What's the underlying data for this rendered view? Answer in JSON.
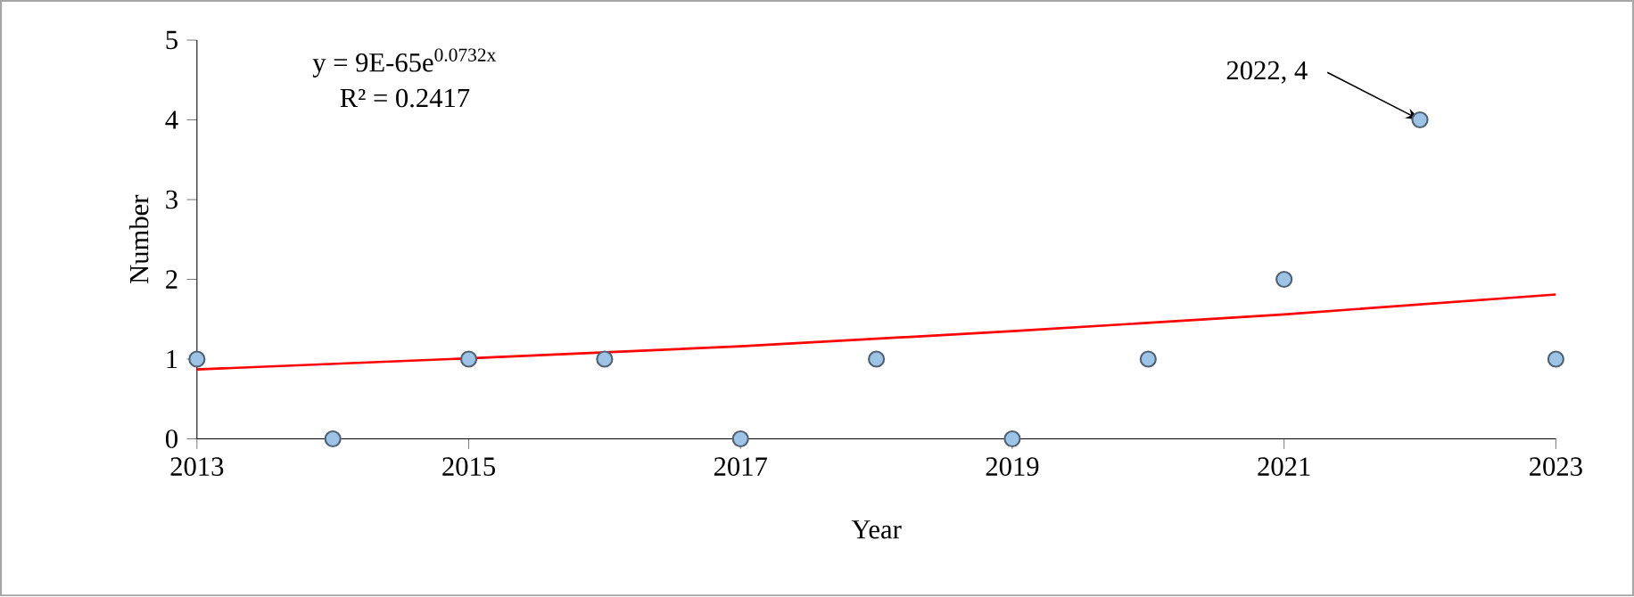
{
  "chart_data": {
    "type": "scatter",
    "xlabel": "Year",
    "ylabel": "Number",
    "xlim": [
      2013,
      2023
    ],
    "xticks": [
      2013,
      2015,
      2017,
      2019,
      2021,
      2023
    ],
    "ylim": [
      0,
      5
    ],
    "yticks": [
      0,
      1,
      2,
      3,
      4,
      5
    ],
    "grid": false,
    "marker": "circle",
    "series": [
      {
        "color": "#9dc3e6",
        "x": [
          2013,
          2014,
          2015,
          2016,
          2017,
          2018,
          2019,
          2020,
          2021,
          2022,
          2023
        ],
        "values": [
          1,
          0,
          1,
          1,
          0,
          1,
          0,
          1,
          2,
          4,
          1
        ]
      },
      {
        "type": "line",
        "color": "#ff0000",
        "marker": "none",
        "x": [
          2013,
          2015,
          2017,
          2019,
          2021,
          2023
        ],
        "values": [
          0.87,
          1.01,
          1.16,
          1.35,
          1.56,
          1.81
        ]
      }
    ],
    "annotations": [
      "y = 9E-65e$^{0.0732x}$",
      "R² = 0.2417",
      {
        "text": "2022, 4",
        "x": 2022,
        "y": 4
      }
    ]
  }
}
